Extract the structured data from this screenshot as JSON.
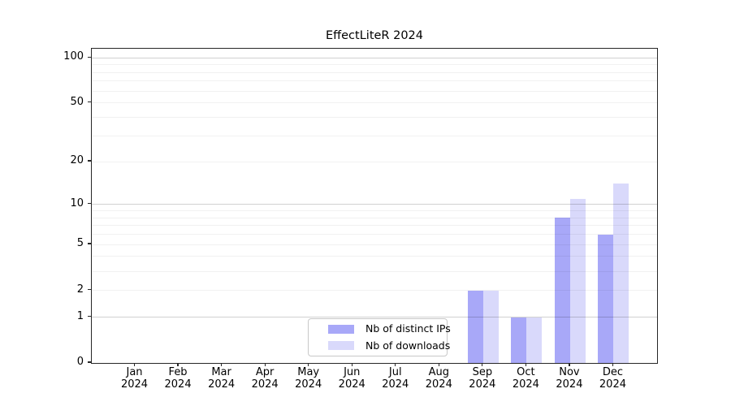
{
  "window": {
    "background": "#ffffff"
  },
  "chart_data": {
    "type": "bar",
    "title": "EffectLiteR 2024",
    "categories": [
      "Jan",
      "Feb",
      "Mar",
      "Apr",
      "May",
      "Jun",
      "Jul",
      "Aug",
      "Sep",
      "Oct",
      "Nov",
      "Dec"
    ],
    "x_axis": {
      "second_line": "2024"
    },
    "series": [
      {
        "name": "Nb of distinct IPs",
        "color": "#a8a8f8",
        "values": [
          0,
          0,
          0,
          0,
          0,
          0,
          0,
          0,
          2,
          1,
          8,
          6
        ]
      },
      {
        "name": "Nb of downloads",
        "color": "#d9d9fb",
        "values": [
          0,
          0,
          0,
          0,
          0,
          0,
          0,
          0,
          2,
          1,
          11,
          14
        ]
      }
    ],
    "y_axis": {
      "scale": "log10(1+x)",
      "tick_values": [
        0,
        1,
        2,
        5,
        10,
        20,
        50,
        100
      ],
      "tick_labels": [
        "0",
        "1",
        "2",
        "5",
        "10",
        "20",
        "50",
        "100"
      ],
      "major_gridlines": [
        1,
        10,
        100
      ],
      "minor_gridlines": [
        2,
        3,
        4,
        5,
        6,
        7,
        8,
        9,
        20,
        30,
        40,
        50,
        60,
        70,
        80,
        90
      ],
      "range": [
        0,
        115
      ]
    },
    "legend": {
      "position": "inside-bottom-center",
      "labels": [
        "Nb of distinct IPs",
        "Nb of downloads"
      ]
    },
    "grid": true,
    "colors": {
      "spine": "#262626",
      "text": "#000000",
      "major_grid": "#cdcdcd",
      "minor_grid": "#f0f0f0"
    }
  }
}
